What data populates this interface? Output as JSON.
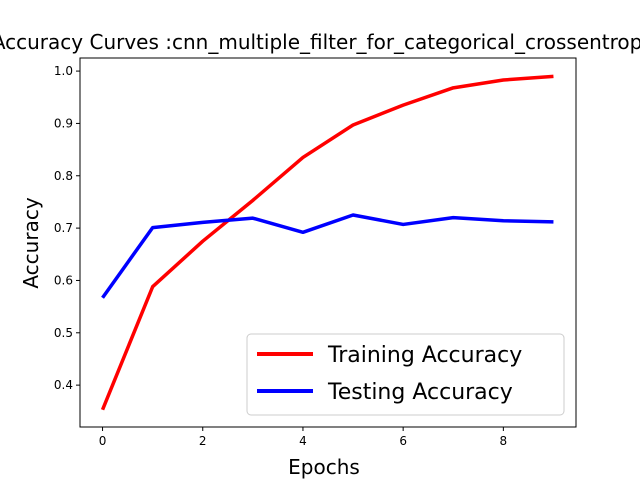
{
  "chart_data": {
    "type": "line",
    "title": "Accuracy Curves :cnn_multiple_filter_for_categorical_crossentropy",
    "xlabel": "Epochs",
    "ylabel": "Accuracy",
    "x": [
      0,
      1,
      2,
      3,
      4,
      5,
      6,
      7,
      8,
      9
    ],
    "xlim": [
      -0.45,
      9.45
    ],
    "ylim": [
      0.32,
      1.025
    ],
    "xticks": [
      0,
      2,
      4,
      6,
      8
    ],
    "yticks": [
      0.4,
      0.5,
      0.6,
      0.7,
      0.8,
      0.9,
      1.0
    ],
    "grid": false,
    "legend_position": "lower-right",
    "series": [
      {
        "name": "Training Accuracy",
        "color": "#ff0000",
        "values": [
          0.353,
          0.588,
          0.675,
          0.753,
          0.835,
          0.897,
          0.935,
          0.968,
          0.983,
          0.99
        ]
      },
      {
        "name": "Testing Accuracy",
        "color": "#0000ff",
        "values": [
          0.567,
          0.701,
          0.711,
          0.719,
          0.692,
          0.725,
          0.707,
          0.72,
          0.714,
          0.712
        ]
      }
    ]
  }
}
